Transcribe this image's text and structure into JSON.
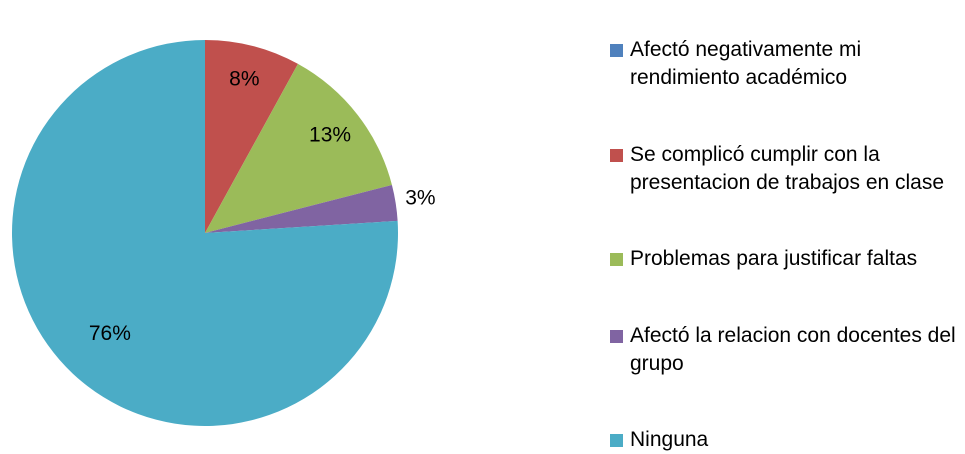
{
  "chart_data": {
    "type": "pie",
    "categories": [
      "Afectó negativamente mi rendimiento académico",
      "Se complicó cumplir con la presentacion de trabajos en clase",
      "Problemas para justificar faltas",
      "Afectó la relacion con docentes del grupo",
      "Ninguna"
    ],
    "values": [
      0,
      8,
      13,
      3,
      76
    ],
    "value_labels": [
      null,
      "8%",
      "13%",
      "3%",
      "76%"
    ],
    "colors": [
      "#4F81BD",
      "#C0504D",
      "#9BBB59",
      "#8064A2",
      "#4BACC6"
    ],
    "legend": "right"
  }
}
